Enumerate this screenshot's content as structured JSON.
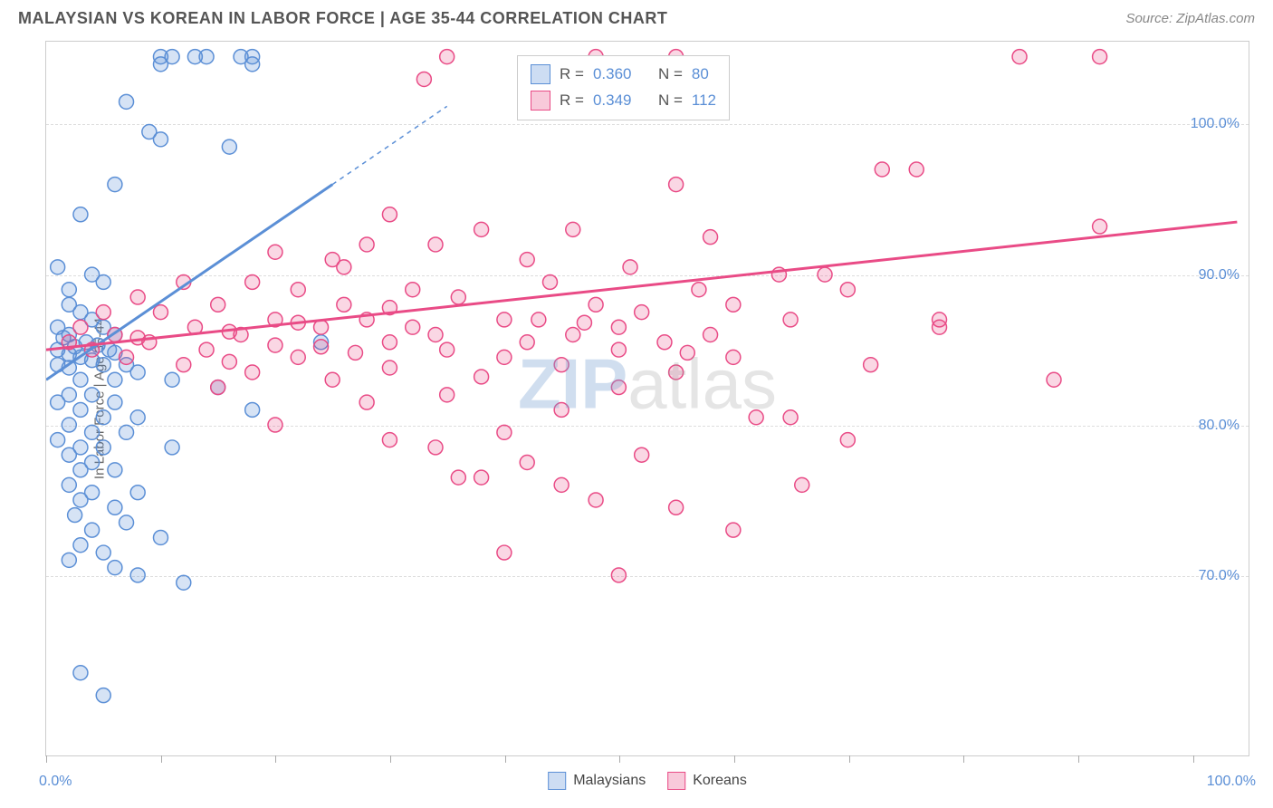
{
  "title": "MALAYSIAN VS KOREAN IN LABOR FORCE | AGE 35-44 CORRELATION CHART",
  "source": "Source: ZipAtlas.com",
  "chart": {
    "type": "scatter",
    "ylabel": "In Labor Force | Age 35-44",
    "xlim": [
      0,
      105
    ],
    "ylim": [
      58,
      105.5
    ],
    "yticks": [
      {
        "value": 70,
        "label": "70.0%"
      },
      {
        "value": 80,
        "label": "80.0%"
      },
      {
        "value": 90,
        "label": "90.0%"
      },
      {
        "value": 100,
        "label": "100.0%"
      }
    ],
    "xticks_major": [
      0,
      100
    ],
    "xticks_minor": [
      10,
      20,
      30,
      40,
      50,
      60,
      70,
      80,
      90
    ],
    "xtick_labels": {
      "0": "0.0%",
      "100": "100.0%"
    },
    "background_color": "#ffffff",
    "grid_color": "#dddddd",
    "border_color": "#cccccc",
    "marker_radius": 8,
    "marker_stroke_width": 1.5,
    "marker_fill_opacity": 0.25,
    "trend_line_width": 3,
    "watermark": {
      "text_a": "ZIP",
      "text_b": "atlas"
    },
    "series": [
      {
        "name": "Malaysians",
        "color": "#5b8fd6",
        "fill": "rgba(91,143,214,0.25)",
        "R": "0.360",
        "N": "80",
        "trend": {
          "x1": 0,
          "y1": 83,
          "x2": 25,
          "y2": 96,
          "dash_from_x": 25,
          "dash_to_x": 35,
          "dash_to_y": 101.2
        },
        "points": [
          [
            10,
            104.5
          ],
          [
            13,
            104.5
          ],
          [
            17,
            104.5
          ],
          [
            14,
            104.5
          ],
          [
            18,
            104.5
          ],
          [
            7,
            101.5
          ],
          [
            9,
            99.5
          ],
          [
            10,
            99
          ],
          [
            16,
            98.5
          ],
          [
            6,
            96
          ],
          [
            3,
            94
          ],
          [
            1,
            90.5
          ],
          [
            4,
            90
          ],
          [
            5,
            89.5
          ],
          [
            2,
            89
          ],
          [
            2,
            88
          ],
          [
            3,
            87.5
          ],
          [
            4,
            87
          ],
          [
            1,
            86.5
          ],
          [
            5,
            86.5
          ],
          [
            6,
            86
          ],
          [
            2,
            86
          ],
          [
            1.5,
            85.8
          ],
          [
            3.5,
            85.5
          ],
          [
            4.5,
            85.3
          ],
          [
            2.5,
            85.2
          ],
          [
            5.5,
            85
          ],
          [
            1,
            85
          ],
          [
            6,
            84.8
          ],
          [
            2,
            84.7
          ],
          [
            3,
            84.5
          ],
          [
            4,
            84.3
          ],
          [
            24,
            85.5
          ],
          [
            1,
            84
          ],
          [
            5,
            84
          ],
          [
            7,
            84
          ],
          [
            2,
            83.8
          ],
          [
            8,
            83.5
          ],
          [
            3,
            83
          ],
          [
            6,
            83
          ],
          [
            11,
            83
          ],
          [
            15,
            82.5
          ],
          [
            2,
            82
          ],
          [
            4,
            82
          ],
          [
            1,
            81.5
          ],
          [
            6,
            81.5
          ],
          [
            3,
            81
          ],
          [
            5,
            80.5
          ],
          [
            8,
            80.5
          ],
          [
            18,
            81
          ],
          [
            2,
            80
          ],
          [
            4,
            79.5
          ],
          [
            7,
            79.5
          ],
          [
            1,
            79
          ],
          [
            3,
            78.5
          ],
          [
            5,
            78.5
          ],
          [
            11,
            78.5
          ],
          [
            2,
            78
          ],
          [
            4,
            77.5
          ],
          [
            3,
            77
          ],
          [
            6,
            77
          ],
          [
            2,
            76
          ],
          [
            4,
            75.5
          ],
          [
            8,
            75.5
          ],
          [
            3,
            75
          ],
          [
            6,
            74.5
          ],
          [
            2.5,
            74
          ],
          [
            7,
            73.5
          ],
          [
            4,
            73
          ],
          [
            10,
            72.5
          ],
          [
            3,
            72
          ],
          [
            5,
            71.5
          ],
          [
            2,
            71
          ],
          [
            6,
            70.5
          ],
          [
            8,
            70
          ],
          [
            12,
            69.5
          ],
          [
            3,
            63.5
          ],
          [
            5,
            62
          ],
          [
            10,
            104
          ],
          [
            11,
            104.5
          ],
          [
            18,
            104
          ]
        ]
      },
      {
        "name": "Koreans",
        "color": "#e94b86",
        "fill": "rgba(233,75,134,0.22)",
        "R": "0.349",
        "N": "112",
        "trend": {
          "x1": 0,
          "y1": 85,
          "x2": 104,
          "y2": 93.5
        },
        "points": [
          [
            35,
            104.5
          ],
          [
            48,
            104.5
          ],
          [
            55,
            104.5
          ],
          [
            85,
            104.5
          ],
          [
            92,
            104.5
          ],
          [
            33,
            103
          ],
          [
            55,
            96
          ],
          [
            73,
            97
          ],
          [
            76,
            97
          ],
          [
            38,
            93
          ],
          [
            46,
            93
          ],
          [
            58,
            92.5
          ],
          [
            34,
            92
          ],
          [
            30,
            94
          ],
          [
            28,
            92
          ],
          [
            20,
            91.5
          ],
          [
            25,
            91
          ],
          [
            42,
            91
          ],
          [
            51,
            90.5
          ],
          [
            64,
            90
          ],
          [
            68,
            90
          ],
          [
            12,
            89.5
          ],
          [
            18,
            89.5
          ],
          [
            22,
            89
          ],
          [
            32,
            89
          ],
          [
            44,
            89.5
          ],
          [
            57,
            89
          ],
          [
            70,
            89
          ],
          [
            8,
            88.5
          ],
          [
            15,
            88
          ],
          [
            26,
            88
          ],
          [
            36,
            88.5
          ],
          [
            48,
            88
          ],
          [
            60,
            88
          ],
          [
            5,
            87.5
          ],
          [
            10,
            87.5
          ],
          [
            20,
            87
          ],
          [
            28,
            87
          ],
          [
            40,
            87
          ],
          [
            52,
            87.5
          ],
          [
            65,
            87
          ],
          [
            78,
            87
          ],
          [
            3,
            86.5
          ],
          [
            13,
            86.5
          ],
          [
            24,
            86.5
          ],
          [
            34,
            86
          ],
          [
            46,
            86
          ],
          [
            58,
            86
          ],
          [
            78,
            86.5
          ],
          [
            6,
            86
          ],
          [
            17,
            86
          ],
          [
            30,
            85.5
          ],
          [
            42,
            85.5
          ],
          [
            54,
            85.5
          ],
          [
            2,
            85.5
          ],
          [
            9,
            85.5
          ],
          [
            20,
            85.3
          ],
          [
            35,
            85
          ],
          [
            50,
            85
          ],
          [
            4,
            85
          ],
          [
            14,
            85
          ],
          [
            27,
            84.8
          ],
          [
            40,
            84.5
          ],
          [
            60,
            84.5
          ],
          [
            7,
            84.5
          ],
          [
            22,
            84.5
          ],
          [
            45,
            84
          ],
          [
            72,
            84
          ],
          [
            12,
            84
          ],
          [
            30,
            83.8
          ],
          [
            55,
            83.5
          ],
          [
            88,
            83
          ],
          [
            18,
            83.5
          ],
          [
            38,
            83.2
          ],
          [
            25,
            83
          ],
          [
            50,
            82.5
          ],
          [
            15,
            82.5
          ],
          [
            35,
            82
          ],
          [
            28,
            81.5
          ],
          [
            45,
            81
          ],
          [
            62,
            80.5
          ],
          [
            65,
            80.5
          ],
          [
            20,
            80
          ],
          [
            40,
            79.5
          ],
          [
            30,
            79
          ],
          [
            70,
            79
          ],
          [
            34,
            78.5
          ],
          [
            52,
            78
          ],
          [
            42,
            77.5
          ],
          [
            38,
            76.5
          ],
          [
            45,
            76
          ],
          [
            48,
            75
          ],
          [
            66,
            76
          ],
          [
            55,
            74.5
          ],
          [
            60,
            73
          ],
          [
            40,
            71.5
          ],
          [
            50,
            70
          ],
          [
            47,
            86.8
          ],
          [
            92,
            93.2
          ],
          [
            26,
            90.5
          ],
          [
            30,
            87.8
          ],
          [
            22,
            86.8
          ],
          [
            16,
            86.2
          ],
          [
            8,
            85.8
          ],
          [
            32,
            86.5
          ],
          [
            16,
            84.2
          ],
          [
            24,
            85.2
          ],
          [
            43,
            87
          ],
          [
            56,
            84.8
          ],
          [
            50,
            86.5
          ],
          [
            36,
            76.5
          ]
        ]
      }
    ]
  },
  "legend": {
    "items": [
      {
        "label": "Malaysians",
        "color": "#5b8fd6",
        "fill": "rgba(91,143,214,0.3)"
      },
      {
        "label": "Koreans",
        "color": "#e94b86",
        "fill": "rgba(233,75,134,0.3)"
      }
    ]
  }
}
